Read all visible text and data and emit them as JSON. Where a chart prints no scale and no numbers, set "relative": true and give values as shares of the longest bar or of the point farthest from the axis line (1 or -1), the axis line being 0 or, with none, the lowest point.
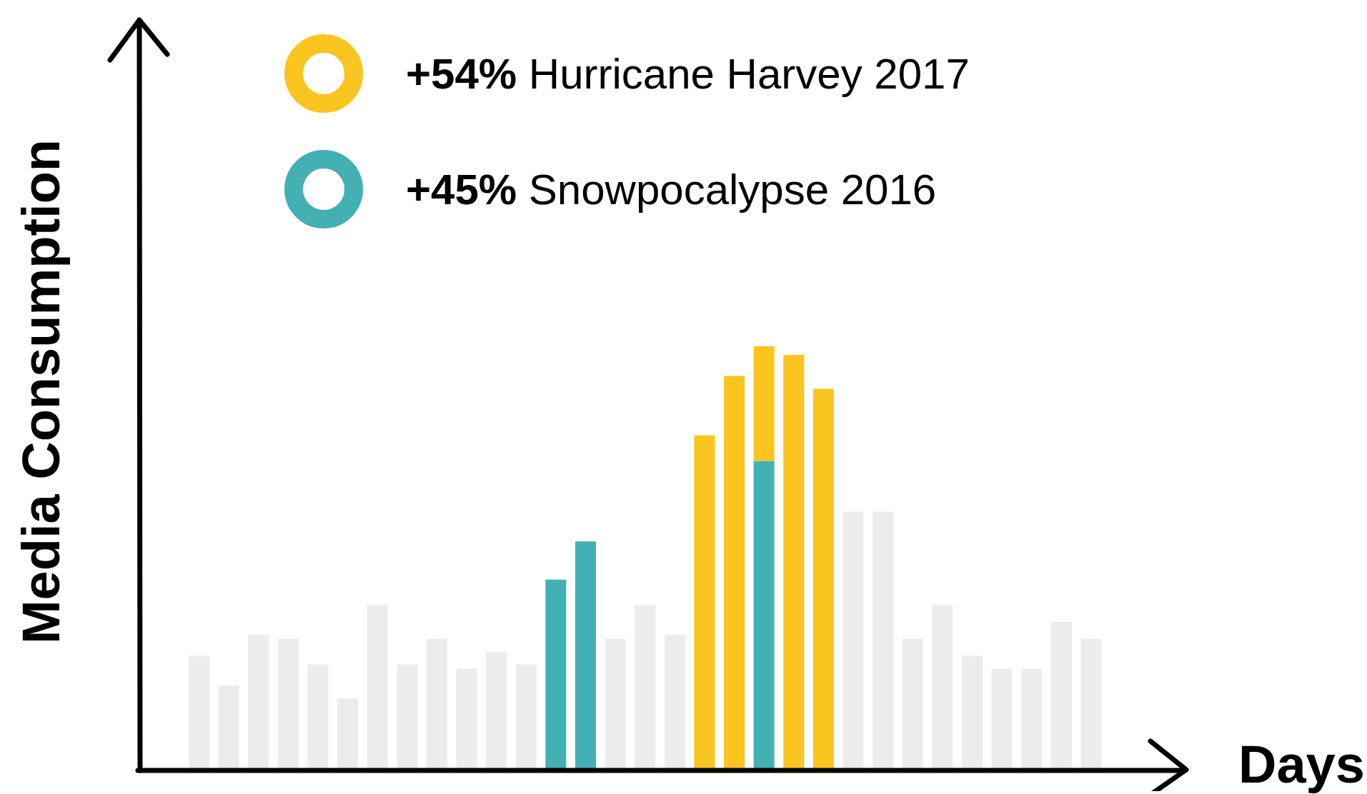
{
  "chart_data": {
    "type": "bar",
    "relative": true,
    "stacked": true,
    "xlabel": "Days",
    "ylabel": "Media Consumption",
    "legend": "top left",
    "categories": [
      null,
      null,
      null,
      null,
      null,
      null,
      null,
      null,
      null,
      null,
      null,
      null,
      null,
      null,
      null,
      null,
      null,
      null,
      null,
      null,
      null,
      null,
      null,
      null,
      null,
      null,
      null,
      null,
      null,
      null,
      null
    ],
    "series": [
      {
        "color": "#ececec",
        "values": [
          0.27,
          0.2,
          0.32,
          0.31,
          0.25,
          0.17,
          0.39,
          0.25,
          0.31,
          0.24,
          0.28,
          0.25,
          null,
          null,
          0.31,
          0.39,
          0.32,
          null,
          null,
          null,
          null,
          null,
          0.61,
          0.61,
          0.31,
          0.39,
          0.27,
          0.24,
          0.24,
          0.35,
          0.31
        ]
      },
      {
        "name": "+45% Snowpocalypse 2016",
        "color": "#43b0b4",
        "values": [
          null,
          null,
          null,
          null,
          null,
          null,
          null,
          null,
          null,
          null,
          null,
          null,
          0.45,
          0.54,
          null,
          null,
          null,
          null,
          null,
          0.73,
          null,
          null,
          null,
          null,
          null,
          null,
          null,
          null,
          null,
          null,
          null
        ]
      },
      {
        "name": "+54% Hurricane Harvey 2017",
        "color": "#fbc520",
        "values": [
          null,
          null,
          null,
          null,
          null,
          null,
          null,
          null,
          null,
          null,
          null,
          null,
          null,
          null,
          null,
          null,
          null,
          0.79,
          0.93,
          0.27,
          0.98,
          0.9,
          null,
          null,
          null,
          null,
          null,
          null,
          null,
          null,
          null
        ]
      }
    ]
  }
}
